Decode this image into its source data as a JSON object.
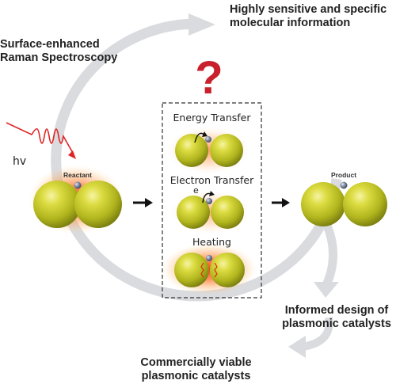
{
  "labels": {
    "sers": [
      "Surface-enhanced",
      "Raman Spectroscopy"
    ],
    "info": [
      "Highly sensitive and specific",
      "molecular information"
    ],
    "design": [
      "Informed design of",
      "plasmonic catalysts"
    ],
    "commercial": [
      "Commercially viable",
      "plasmonic catalysts"
    ],
    "question_mark": "?",
    "photon": "hv",
    "reactant": "Reactant",
    "product": "Product",
    "energy_transfer": "Energy Transfer",
    "electron_transfer": "Electron Transfer",
    "electron_symbol": "e",
    "heating": "Heating"
  },
  "colors": {
    "loop_arrow": "#d9dbdf",
    "question": "#c8202c",
    "light_ray": "#e02424",
    "particle_gold": "#c3c32a",
    "hotspot": "#f25a1e",
    "molecule": "#56627a",
    "box_border": "#333333"
  }
}
